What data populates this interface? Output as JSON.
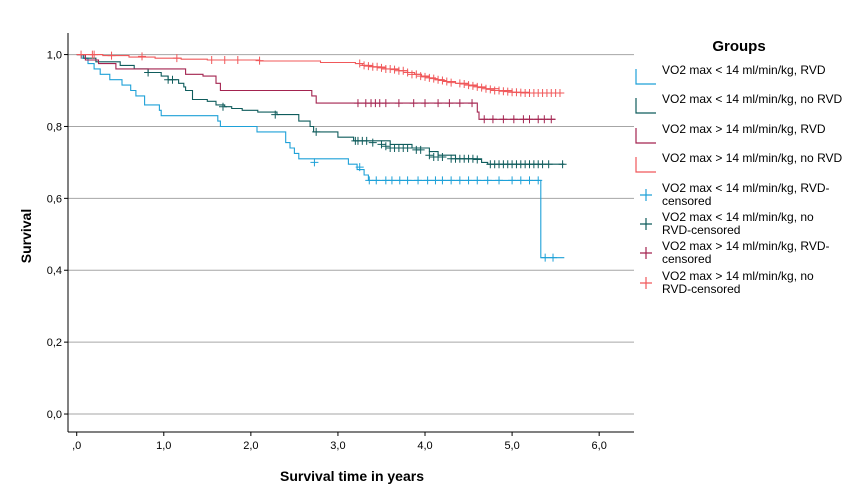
{
  "chart_data": {
    "type": "line",
    "subtype": "kaplan-meier-step",
    "xlabel": "Survival time in years",
    "ylabel": "Survival",
    "xlim": [
      -0.1,
      6.4
    ],
    "ylim": [
      -0.05,
      1.06
    ],
    "xticks": [
      0,
      1,
      2,
      3,
      4,
      5,
      6
    ],
    "xtick_labels": [
      ",0",
      "1,0",
      "2,0",
      "3,0",
      "4,0",
      "5,0",
      "6,0"
    ],
    "yticks": [
      0,
      0.2,
      0.4,
      0.6,
      0.8,
      1.0
    ],
    "ytick_labels": [
      "0,0",
      "0,2",
      "0,4",
      "0,6",
      "0,8",
      "1,0"
    ],
    "grid": "horizontal",
    "legend_title": "Groups",
    "legend_position": "right",
    "series": [
      {
        "name": "VO2 max < 14 ml/min/kg, RVD",
        "color": "#1ea1d8",
        "steps": [
          [
            0,
            1.0
          ],
          [
            0.06,
            0.99
          ],
          [
            0.13,
            0.975
          ],
          [
            0.2,
            0.96
          ],
          [
            0.27,
            0.945
          ],
          [
            0.38,
            0.93
          ],
          [
            0.52,
            0.915
          ],
          [
            0.62,
            0.9
          ],
          [
            0.68,
            0.885
          ],
          [
            0.78,
            0.86
          ],
          [
            0.95,
            0.845
          ],
          [
            0.97,
            0.83
          ],
          [
            1.62,
            0.815
          ],
          [
            1.65,
            0.8
          ],
          [
            2.07,
            0.785
          ],
          [
            2.4,
            0.77
          ],
          [
            2.4,
            0.755
          ],
          [
            2.45,
            0.74
          ],
          [
            2.5,
            0.725
          ],
          [
            2.55,
            0.71
          ],
          [
            3.12,
            0.695
          ],
          [
            3.22,
            0.68
          ],
          [
            3.3,
            0.665
          ],
          [
            3.35,
            0.65
          ],
          [
            5.33,
            0.435
          ],
          [
            5.6,
            0.435
          ]
        ],
        "censored": [
          [
            2.73,
            0.7
          ],
          [
            3.25,
            0.687
          ],
          [
            3.36,
            0.65
          ],
          [
            3.44,
            0.65
          ],
          [
            3.55,
            0.65
          ],
          [
            3.62,
            0.65
          ],
          [
            3.71,
            0.65
          ],
          [
            3.8,
            0.65
          ],
          [
            3.92,
            0.65
          ],
          [
            4.03,
            0.65
          ],
          [
            4.12,
            0.65
          ],
          [
            4.2,
            0.65
          ],
          [
            4.3,
            0.65
          ],
          [
            4.4,
            0.65
          ],
          [
            4.5,
            0.65
          ],
          [
            4.6,
            0.65
          ],
          [
            4.72,
            0.65
          ],
          [
            4.85,
            0.65
          ],
          [
            5.0,
            0.65
          ],
          [
            5.1,
            0.65
          ],
          [
            5.2,
            0.65
          ],
          [
            5.3,
            0.65
          ],
          [
            5.38,
            0.435
          ],
          [
            5.47,
            0.435
          ]
        ]
      },
      {
        "name": "VO2 max < 14 ml/min/kg, no RVD",
        "color": "#0f5c5c",
        "steps": [
          [
            0,
            1.0
          ],
          [
            0.08,
            0.99
          ],
          [
            0.22,
            0.98
          ],
          [
            0.5,
            0.97
          ],
          [
            0.66,
            0.96
          ],
          [
            0.82,
            0.95
          ],
          [
            0.97,
            0.94
          ],
          [
            1.05,
            0.93
          ],
          [
            1.17,
            0.92
          ],
          [
            1.23,
            0.91
          ],
          [
            1.25,
            0.9
          ],
          [
            1.33,
            0.875
          ],
          [
            1.5,
            0.87
          ],
          [
            1.6,
            0.86
          ],
          [
            1.7,
            0.855
          ],
          [
            1.78,
            0.85
          ],
          [
            1.9,
            0.845
          ],
          [
            2.08,
            0.84
          ],
          [
            2.3,
            0.833
          ],
          [
            2.55,
            0.815
          ],
          [
            2.68,
            0.8
          ],
          [
            2.72,
            0.785
          ],
          [
            3.0,
            0.77
          ],
          [
            3.18,
            0.76
          ],
          [
            3.6,
            0.75
          ],
          [
            3.85,
            0.74
          ],
          [
            4.05,
            0.73
          ],
          [
            4.15,
            0.72
          ],
          [
            4.35,
            0.71
          ],
          [
            4.65,
            0.7
          ],
          [
            4.72,
            0.695
          ],
          [
            5.6,
            0.695
          ]
        ],
        "censored": [
          [
            0.82,
            0.95
          ],
          [
            1.05,
            0.93
          ],
          [
            1.1,
            0.93
          ],
          [
            1.68,
            0.855
          ],
          [
            2.28,
            0.833
          ],
          [
            2.75,
            0.785
          ],
          [
            3.2,
            0.76
          ],
          [
            3.23,
            0.76
          ],
          [
            3.28,
            0.76
          ],
          [
            3.33,
            0.76
          ],
          [
            3.4,
            0.755
          ],
          [
            3.5,
            0.75
          ],
          [
            3.55,
            0.745
          ],
          [
            3.6,
            0.74
          ],
          [
            3.65,
            0.74
          ],
          [
            3.7,
            0.74
          ],
          [
            3.75,
            0.74
          ],
          [
            3.8,
            0.74
          ],
          [
            3.9,
            0.735
          ],
          [
            3.95,
            0.735
          ],
          [
            4.05,
            0.72
          ],
          [
            4.1,
            0.715
          ],
          [
            4.15,
            0.715
          ],
          [
            4.2,
            0.715
          ],
          [
            4.3,
            0.71
          ],
          [
            4.35,
            0.71
          ],
          [
            4.4,
            0.71
          ],
          [
            4.45,
            0.71
          ],
          [
            4.5,
            0.71
          ],
          [
            4.55,
            0.71
          ],
          [
            4.6,
            0.708
          ],
          [
            4.75,
            0.695
          ],
          [
            4.8,
            0.695
          ],
          [
            4.85,
            0.695
          ],
          [
            4.9,
            0.695
          ],
          [
            4.95,
            0.695
          ],
          [
            5.0,
            0.695
          ],
          [
            5.05,
            0.695
          ],
          [
            5.1,
            0.695
          ],
          [
            5.15,
            0.695
          ],
          [
            5.2,
            0.695
          ],
          [
            5.25,
            0.695
          ],
          [
            5.3,
            0.695
          ],
          [
            5.35,
            0.695
          ],
          [
            5.42,
            0.695
          ],
          [
            5.58,
            0.695
          ]
        ]
      },
      {
        "name": "VO2 max > 14 ml/min/kg, RVD",
        "color": "#a3234f",
        "steps": [
          [
            0,
            1.0
          ],
          [
            0.1,
            0.985
          ],
          [
            0.25,
            0.975
          ],
          [
            0.45,
            0.96
          ],
          [
            1.25,
            0.945
          ],
          [
            1.45,
            0.94
          ],
          [
            1.6,
            0.92
          ],
          [
            1.65,
            0.9
          ],
          [
            2.7,
            0.885
          ],
          [
            2.75,
            0.865
          ],
          [
            4.6,
            0.84
          ],
          [
            4.62,
            0.82
          ],
          [
            5.5,
            0.82
          ]
        ],
        "censored": [
          [
            3.23,
            0.865
          ],
          [
            3.32,
            0.865
          ],
          [
            3.38,
            0.865
          ],
          [
            3.43,
            0.865
          ],
          [
            3.48,
            0.865
          ],
          [
            3.55,
            0.865
          ],
          [
            3.7,
            0.865
          ],
          [
            3.87,
            0.865
          ],
          [
            4.0,
            0.865
          ],
          [
            4.15,
            0.865
          ],
          [
            4.28,
            0.865
          ],
          [
            4.4,
            0.865
          ],
          [
            4.54,
            0.865
          ],
          [
            4.68,
            0.82
          ],
          [
            4.78,
            0.82
          ],
          [
            4.9,
            0.82
          ],
          [
            5.02,
            0.82
          ],
          [
            5.13,
            0.82
          ],
          [
            5.2,
            0.82
          ],
          [
            5.3,
            0.82
          ],
          [
            5.37,
            0.82
          ],
          [
            5.45,
            0.82
          ]
        ]
      },
      {
        "name": "VO2 max > 14 ml/min/kg, no RVD",
        "color": "#f0585a",
        "steps": [
          [
            0,
            1.0
          ],
          [
            0.3,
            0.997
          ],
          [
            0.6,
            0.993
          ],
          [
            0.9,
            0.99
          ],
          [
            1.2,
            0.987
          ],
          [
            1.5,
            0.985
          ],
          [
            2.1,
            0.982
          ],
          [
            2.8,
            0.978
          ],
          [
            3.2,
            0.975
          ],
          [
            3.28,
            0.97
          ],
          [
            3.4,
            0.965
          ],
          [
            3.55,
            0.96
          ],
          [
            3.7,
            0.955
          ],
          [
            3.8,
            0.95
          ],
          [
            3.88,
            0.945
          ],
          [
            3.96,
            0.94
          ],
          [
            4.05,
            0.935
          ],
          [
            4.12,
            0.93
          ],
          [
            4.22,
            0.925
          ],
          [
            4.35,
            0.92
          ],
          [
            4.5,
            0.915
          ],
          [
            4.6,
            0.91
          ],
          [
            4.7,
            0.905
          ],
          [
            4.85,
            0.9
          ],
          [
            5.0,
            0.895
          ],
          [
            5.2,
            0.893
          ],
          [
            5.6,
            0.893
          ]
        ],
        "censored": [
          [
            0.05,
            1.0
          ],
          [
            0.18,
            1.0
          ],
          [
            0.2,
            1.0
          ],
          [
            0.4,
            0.997
          ],
          [
            0.75,
            0.995
          ],
          [
            1.15,
            0.99
          ],
          [
            1.55,
            0.985
          ],
          [
            1.7,
            0.985
          ],
          [
            1.85,
            0.985
          ],
          [
            2.1,
            0.983
          ],
          [
            3.25,
            0.975
          ],
          [
            3.3,
            0.97
          ],
          [
            3.35,
            0.968
          ],
          [
            3.4,
            0.966
          ],
          [
            3.45,
            0.966
          ],
          [
            3.5,
            0.963
          ],
          [
            3.55,
            0.96
          ],
          [
            3.6,
            0.96
          ],
          [
            3.65,
            0.958
          ],
          [
            3.7,
            0.955
          ],
          [
            3.75,
            0.955
          ],
          [
            3.8,
            0.95
          ],
          [
            3.85,
            0.945
          ],
          [
            3.9,
            0.945
          ],
          [
            3.95,
            0.94
          ],
          [
            4.0,
            0.938
          ],
          [
            4.05,
            0.935
          ],
          [
            4.1,
            0.933
          ],
          [
            4.15,
            0.93
          ],
          [
            4.2,
            0.928
          ],
          [
            4.25,
            0.925
          ],
          [
            4.3,
            0.922
          ],
          [
            4.4,
            0.92
          ],
          [
            4.45,
            0.918
          ],
          [
            4.5,
            0.915
          ],
          [
            4.55,
            0.913
          ],
          [
            4.6,
            0.91
          ],
          [
            4.65,
            0.908
          ],
          [
            4.7,
            0.905
          ],
          [
            4.75,
            0.903
          ],
          [
            4.8,
            0.9
          ],
          [
            4.85,
            0.9
          ],
          [
            4.9,
            0.898
          ],
          [
            4.95,
            0.897
          ],
          [
            5.0,
            0.895
          ],
          [
            5.05,
            0.895
          ],
          [
            5.1,
            0.894
          ],
          [
            5.15,
            0.893
          ],
          [
            5.2,
            0.893
          ],
          [
            5.25,
            0.893
          ],
          [
            5.3,
            0.893
          ],
          [
            5.35,
            0.893
          ],
          [
            5.4,
            0.893
          ],
          [
            5.45,
            0.893
          ],
          [
            5.5,
            0.893
          ],
          [
            5.55,
            0.893
          ]
        ]
      }
    ]
  },
  "legend": {
    "title": "Groups",
    "items": [
      {
        "label": "VO2 max < 14 ml/min/kg, RVD",
        "color": "#1ea1d8",
        "marker": "line"
      },
      {
        "label": "VO2 max < 14 ml/min/kg, no RVD",
        "color": "#0f5c5c",
        "marker": "line"
      },
      {
        "label": "VO2 max > 14 ml/min/kg, RVD",
        "color": "#a3234f",
        "marker": "line"
      },
      {
        "label": "VO2 max > 14 ml/min/kg, no RVD",
        "color": "#f0585a",
        "marker": "line"
      },
      {
        "label": "VO2 max < 14 ml/min/kg, RVD-censored",
        "color": "#1ea1d8",
        "marker": "plus"
      },
      {
        "label": "VO2 max < 14 ml/min/kg, no RVD-censored",
        "color": "#0f5c5c",
        "marker": "plus"
      },
      {
        "label": "VO2 max > 14 ml/min/kg, RVD-censored",
        "color": "#a3234f",
        "marker": "plus"
      },
      {
        "label": "VO2 max > 14 ml/min/kg, no RVD-censored",
        "color": "#f0585a",
        "marker": "plus"
      }
    ]
  }
}
